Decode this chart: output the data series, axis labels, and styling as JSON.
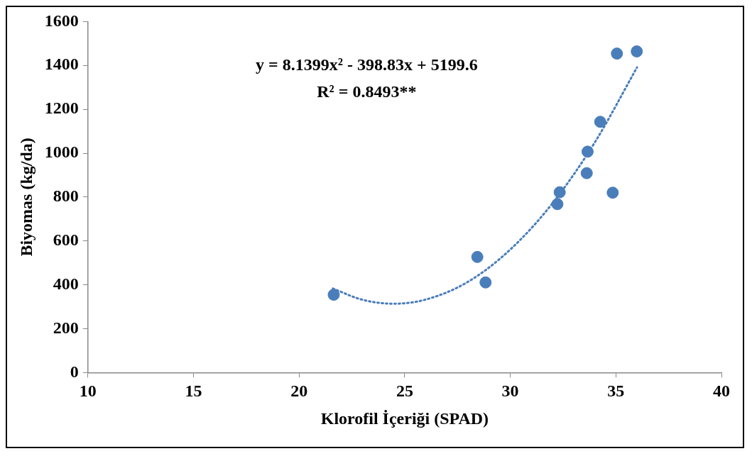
{
  "chart_data": {
    "type": "scatter",
    "xlabel": "Klorofil İçeriği (SPAD)",
    "ylabel": "Biyomas (kg/da)",
    "xlim": [
      10,
      40
    ],
    "xticks": [
      10,
      15,
      20,
      25,
      30,
      35,
      40
    ],
    "ylim": [
      0,
      1600
    ],
    "yticks": [
      0,
      200,
      400,
      600,
      800,
      1000,
      1200,
      1400,
      1600
    ],
    "grid": false,
    "legend": false,
    "marker": "circle",
    "annotations": [
      "y = 8.1399x² - 398.83x + 5199.6",
      "R² = 0.8493**"
    ],
    "series": [
      {
        "color": "#4a7ebb",
        "x": [
          21.64,
          28.44,
          28.83,
          32.23,
          32.34,
          33.62,
          33.66,
          34.26,
          34.85,
          35.05,
          35.99
        ],
        "values": [
          355,
          527,
          411,
          768,
          822,
          909,
          1007,
          1143,
          820,
          1454,
          1464
        ]
      },
      {
        "type": "line",
        "color": "#4a7ebb",
        "line_style": "dotted",
        "marker": "none",
        "x": [
          21.6,
          23,
          24.5,
          26,
          28,
          30,
          32,
          34,
          36
        ],
        "values": [
          383,
          332,
          314,
          333,
          414,
          561,
          772,
          1049,
          1391
        ]
      }
    ]
  }
}
